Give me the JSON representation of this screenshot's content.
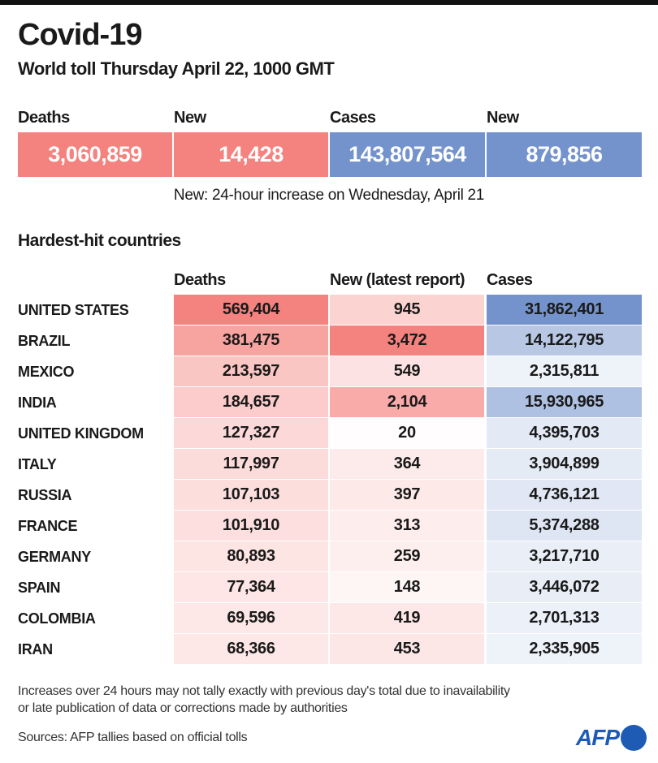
{
  "title": "Covid-19",
  "subtitle": "World toll Thursday April 22, 1000 GMT",
  "kpis": [
    {
      "label": "Deaths",
      "value": "3,060,859",
      "color": "#f4827e"
    },
    {
      "label": "New",
      "value": "14,428",
      "color": "#f4827e"
    },
    {
      "label": "Cases",
      "value": "143,807,564",
      "color": "#7493cc"
    },
    {
      "label": "New",
      "value": "879,856",
      "color": "#7493cc"
    }
  ],
  "note": "New: 24-hour increase on Wednesday, April 21",
  "section_title": "Hardest-hit countries",
  "chart_data": {
    "type": "table",
    "title": "Hardest-hit countries",
    "columns": [
      "Deaths",
      "New (latest report)",
      "Cases"
    ],
    "rows": [
      {
        "country": "UNITED STATES",
        "deaths": "569,404",
        "new": "945",
        "cases": "31,862,401"
      },
      {
        "country": "BRAZIL",
        "deaths": "381,475",
        "new": "3,472",
        "cases": "14,122,795"
      },
      {
        "country": "MEXICO",
        "deaths": "213,597",
        "new": "549",
        "cases": "2,315,811"
      },
      {
        "country": "INDIA",
        "deaths": "184,657",
        "new": "2,104",
        "cases": "15,930,965"
      },
      {
        "country": "UNITED KINGDOM",
        "deaths": "127,327",
        "new": "20",
        "cases": "4,395,703"
      },
      {
        "country": "ITALY",
        "deaths": "117,997",
        "new": "364",
        "cases": "3,904,899"
      },
      {
        "country": "RUSSIA",
        "deaths": "107,103",
        "new": "397",
        "cases": "4,736,121"
      },
      {
        "country": "FRANCE",
        "deaths": "101,910",
        "new": "313",
        "cases": "5,374,288"
      },
      {
        "country": "GERMANY",
        "deaths": "80,893",
        "new": "259",
        "cases": "3,217,710"
      },
      {
        "country": "SPAIN",
        "deaths": "77,364",
        "new": "148",
        "cases": "3,446,072"
      },
      {
        "country": "COLOMBIA",
        "deaths": "69,596",
        "new": "419",
        "cases": "2,701,313"
      },
      {
        "country": "IRAN",
        "deaths": "68,366",
        "new": "453",
        "cases": "2,335,905"
      }
    ],
    "colors": {
      "deaths": "#f4827e",
      "new": "#f4827e",
      "cases": "#7493cc"
    }
  },
  "footnote_1": "Increases over 24 hours may not tally exactly with previous day's total due to inavailability",
  "footnote_2": "or late publication of data or corrections made by authorities",
  "sources": "Sources: AFP tallies based on official tolls",
  "logo": "AFP"
}
